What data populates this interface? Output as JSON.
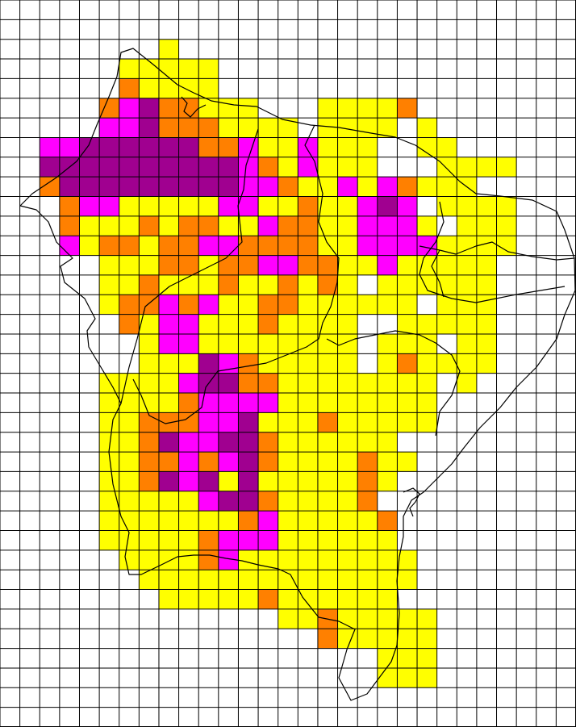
{
  "palette": {
    "0": "#ffffff",
    "1": "#ffff00",
    "2": "#ff8000",
    "3": "#ff00ff",
    "4": "#a00090"
  },
  "grid": {
    "rows": 37,
    "cols": 29,
    "line_color": "#000000",
    "outline_color": "#000000",
    "cells": [
      "00000000000000000000000000000",
      "00000000000000000000000000000",
      "00000000100000000000000000000",
      "00000011111000000000000000000",
      "00000021111000000000000000000",
      "00000234221110001111200000000",
      "00000334222111101111010000000",
      "00334444442231131110011000000",
      "00444444444432131110001111000",
      "00244444444433211313211100000",
      "00023311111331121134301111000",
      "00021112122113221133310111000",
      "00031221223322221133331111000",
      "00000111221223322113111110000",
      "00000112111211212101111110000",
      "00000122323112211111101110000",
      "00000021331112111100111110000",
      "00000001331111111101110110000",
      "00000001114321111101211110000",
      "00000111134422111111110100000",
      "00000111123333111111110000000",
      "00000112223341112111110000000",
      "00000112433442111111000000000",
      "00000112232342111121100000000",
      "00000112434141111121000000000",
      "00000111113442111120000000000",
      "00000111111123111112000000000",
      "00000111112333111111000000000",
      "00000011112311111111100000000",
      "00000001111111111111100000000",
      "00000000111112111111000000000",
      "00000000000000112111110000000",
      "00000000000000002111110000000",
      "00000000000000000001110000000",
      "00000000000000000001110000000",
      "00000000000000000000000000000",
      "00000000000000000000000000000"
    ]
  }
}
